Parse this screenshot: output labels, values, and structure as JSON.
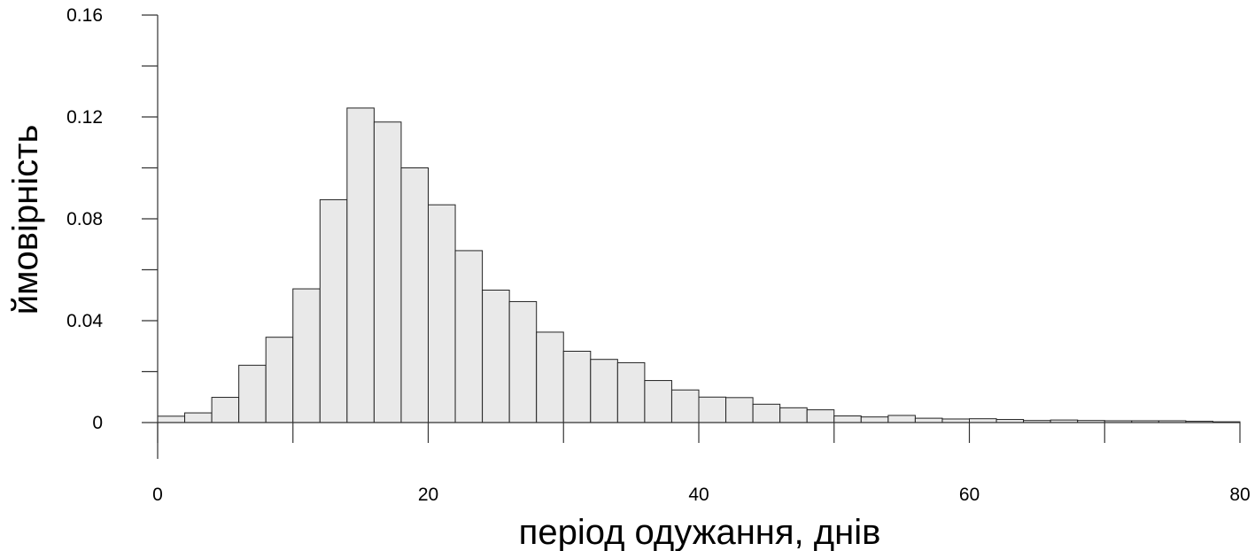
{
  "chart_data": {
    "type": "bar",
    "title": "",
    "xlabel": "період одужання, днів",
    "ylabel": "ймовірність",
    "xlim": [
      0,
      80
    ],
    "ylim": [
      0,
      0.16
    ],
    "x_ticks": [
      0,
      20,
      40,
      60,
      80
    ],
    "x_tick_labels": [
      "0",
      "20",
      "40",
      "60",
      "80"
    ],
    "y_ticks": [
      0,
      0.04,
      0.08,
      0.12,
      0.16
    ],
    "y_tick_labels": [
      "0",
      "0.04",
      "0.08",
      "0.12",
      "0.16"
    ],
    "bin_width": 2,
    "bin_starts": [
      0,
      2,
      4,
      6,
      8,
      10,
      12,
      14,
      16,
      18,
      20,
      22,
      24,
      26,
      28,
      30,
      32,
      34,
      36,
      38,
      40,
      42,
      44,
      46,
      48,
      50,
      52,
      54,
      56,
      58,
      60,
      62,
      64,
      66,
      68,
      70,
      72,
      74,
      76,
      78
    ],
    "values": [
      0.0025,
      0.0038,
      0.0099,
      0.0225,
      0.0335,
      0.0525,
      0.0875,
      0.1235,
      0.118,
      0.1,
      0.0855,
      0.0675,
      0.052,
      0.0475,
      0.0355,
      0.028,
      0.0248,
      0.0235,
      0.0165,
      0.0128,
      0.01,
      0.0098,
      0.0072,
      0.0058,
      0.005,
      0.0026,
      0.0022,
      0.0028,
      0.0017,
      0.0014,
      0.0015,
      0.0012,
      0.0008,
      0.001,
      0.0008,
      0.0007,
      0.0007,
      0.0007,
      0.0005,
      0.0003
    ],
    "grid": false,
    "legend": "none"
  }
}
